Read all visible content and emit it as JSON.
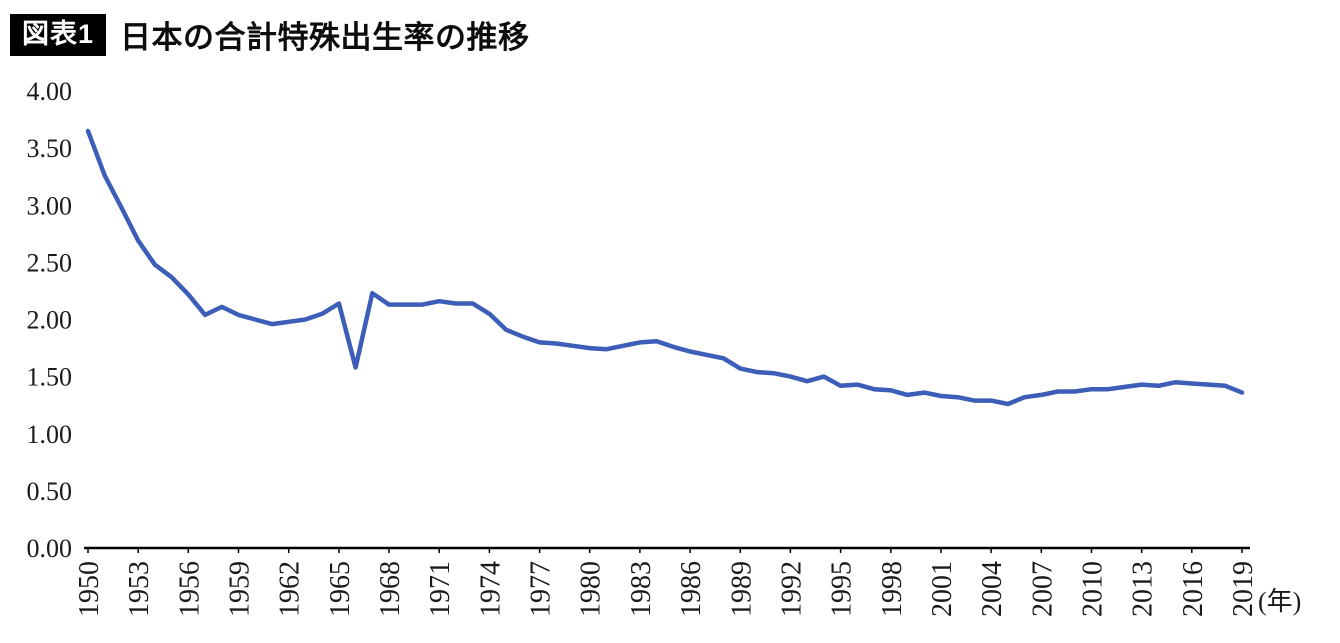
{
  "header": {
    "badge": "図表1",
    "title": "日本の合計特殊出生率の推移"
  },
  "chart_data": {
    "type": "line",
    "title": "日本の合計特殊出生率の推移",
    "ylabel": "",
    "xlabel": "(年)",
    "x_unit_label": "(年)",
    "ylim": [
      0.0,
      4.0
    ],
    "ytick_step": 0.5,
    "ytick_labels": [
      "0.00",
      "0.50",
      "1.00",
      "1.50",
      "2.00",
      "2.50",
      "3.00",
      "3.50",
      "4.00"
    ],
    "xtick_years": [
      1950,
      1953,
      1956,
      1959,
      1962,
      1965,
      1968,
      1971,
      1974,
      1977,
      1980,
      1983,
      1986,
      1989,
      1992,
      1995,
      1998,
      2001,
      2004,
      2007,
      2010,
      2013,
      2016,
      2019
    ],
    "grid": false,
    "legend": "none",
    "line_color": "#3c5db8",
    "axis_color": "#000000",
    "label_color": "#1a1a1a",
    "years": [
      1950,
      1951,
      1952,
      1953,
      1954,
      1955,
      1956,
      1957,
      1958,
      1959,
      1960,
      1961,
      1962,
      1963,
      1964,
      1965,
      1966,
      1967,
      1968,
      1969,
      1970,
      1971,
      1972,
      1973,
      1974,
      1975,
      1976,
      1977,
      1978,
      1979,
      1980,
      1981,
      1982,
      1983,
      1984,
      1985,
      1986,
      1987,
      1988,
      1989,
      1990,
      1991,
      1992,
      1993,
      1994,
      1995,
      1996,
      1997,
      1998,
      1999,
      2000,
      2001,
      2002,
      2003,
      2004,
      2005,
      2006,
      2007,
      2008,
      2009,
      2010,
      2011,
      2012,
      2013,
      2014,
      2015,
      2016,
      2017,
      2018,
      2019
    ],
    "values": [
      3.65,
      3.26,
      2.98,
      2.69,
      2.48,
      2.37,
      2.22,
      2.04,
      2.11,
      2.04,
      2.0,
      1.96,
      1.98,
      2.0,
      2.05,
      2.14,
      1.58,
      2.23,
      2.13,
      2.13,
      2.13,
      2.16,
      2.14,
      2.14,
      2.05,
      1.91,
      1.85,
      1.8,
      1.79,
      1.77,
      1.75,
      1.74,
      1.77,
      1.8,
      1.81,
      1.76,
      1.72,
      1.69,
      1.66,
      1.57,
      1.54,
      1.53,
      1.5,
      1.46,
      1.5,
      1.42,
      1.43,
      1.39,
      1.38,
      1.34,
      1.36,
      1.33,
      1.32,
      1.29,
      1.29,
      1.26,
      1.32,
      1.34,
      1.37,
      1.37,
      1.39,
      1.39,
      1.41,
      1.43,
      1.42,
      1.45,
      1.44,
      1.43,
      1.42,
      1.36
    ]
  }
}
